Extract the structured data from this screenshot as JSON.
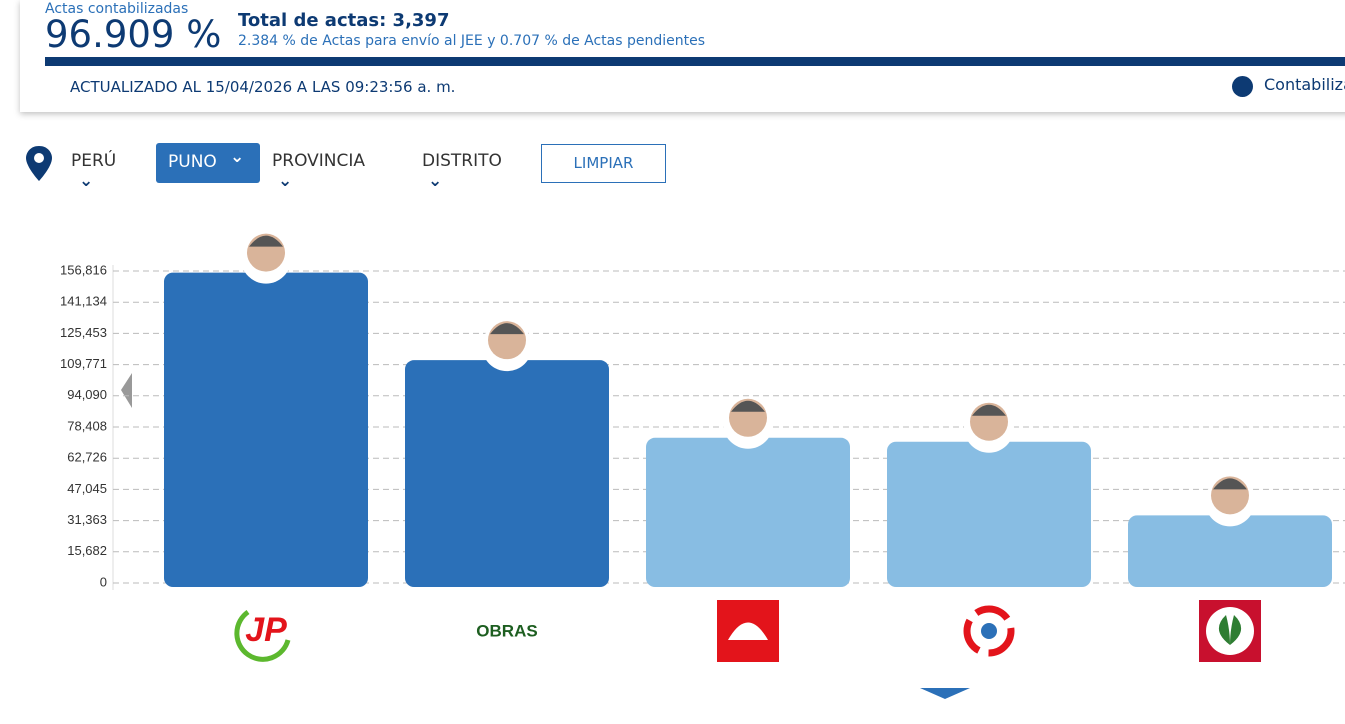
{
  "header": {
    "actas_label": "Actas contabilizadas",
    "actas_percent": "96.909 %",
    "total_actas": "Total de actas: 3,397",
    "detail": "2.384 % de Actas para envío al JEE y 0.707 % de Actas pendientes",
    "updated": "ACTUALIZADO AL 15/04/2026 A LAS 09:23:56 a. m.",
    "legend": "Contabilizadas"
  },
  "filters": {
    "country": "PERÚ",
    "region": "PUNO",
    "province": "PROVINCIA",
    "district": "DISTRITO",
    "clear": "LIMPIAR"
  },
  "chart_data": {
    "type": "bar",
    "categories": [
      "JP",
      "OBRAS",
      null,
      null,
      null
    ],
    "values": [
      156000,
      112000,
      73000,
      71000,
      34000
    ],
    "colors": [
      "#2b70b8",
      "#2b70b8",
      "#88bde3",
      "#88bde3",
      "#88bde3"
    ],
    "ylim": [
      0,
      156816
    ],
    "yticks": [
      0,
      {
        "value": 15682,
        "label": "15,682"
      },
      {
        "value": 31363,
        "label": "31,363"
      },
      {
        "value": 47045,
        "label": "47,045"
      },
      {
        "value": 62726,
        "label": "62,726"
      },
      {
        "value": 78408,
        "label": "78,408"
      },
      {
        "value": 94090,
        "label": "94,090"
      },
      {
        "value": 109771,
        "label": "109,771"
      },
      {
        "value": 125453,
        "label": "125,453"
      },
      {
        "value": 141134,
        "label": "141,134"
      },
      {
        "value": 156816,
        "label": "156,816"
      }
    ],
    "grid": true
  }
}
